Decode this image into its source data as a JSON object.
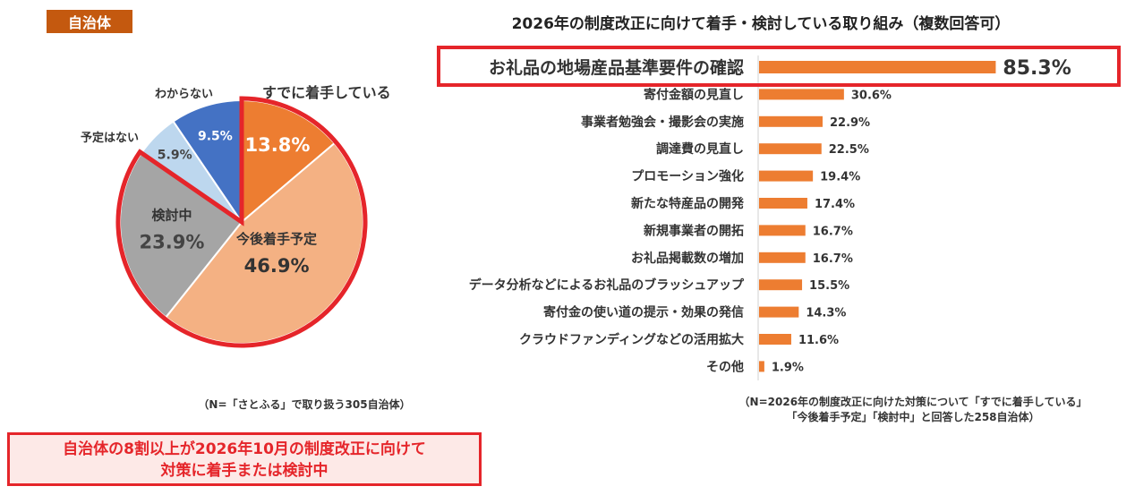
{
  "header": {
    "tag": "自治体"
  },
  "pie": {
    "note": "（N=「さとふる」で取り扱う305自治体）"
  },
  "bar": {
    "title": "2026年の制度改正に向けて着手・検討している取り組み（複数回答可）",
    "note_line1": "（N=2026年の制度改正に向けた対策について「すでに着手している」",
    "note_line2": "「今後着手予定」「検討中」と回答した258自治体）"
  },
  "summary": {
    "line1": "自治体の8割以上が2026年10月の制度改正に向けて",
    "line2": "対策に着手または検討中"
  },
  "colors": {
    "tag_bg": "#c4590f",
    "highlight_red": "#e5252a",
    "bar_orange": "#ed7d31"
  },
  "chart_data": [
    {
      "type": "pie",
      "slices": [
        {
          "label": "すでに着手している",
          "value": 13.8,
          "value_label": "13.8%",
          "color": "#ed7d31"
        },
        {
          "label": "今後着手予定",
          "value": 46.9,
          "value_label": "46.9%",
          "color": "#f4b183"
        },
        {
          "label": "検討中",
          "value": 23.9,
          "value_label": "23.9%",
          "color": "#a5a5a5"
        },
        {
          "label": "予定はない",
          "value": 5.9,
          "value_label": "5.9%",
          "color": "#bdd7ee"
        },
        {
          "label": "わからない",
          "value": 9.5,
          "value_label": "9.5%",
          "color": "#4472c4"
        }
      ]
    },
    {
      "type": "bar",
      "orientation": "horizontal",
      "categories": [
        "お礼品の地場産品基準要件の確認",
        "寄付金額の見直し",
        "事業者勉強会・撮影会の実施",
        "調達費の見直し",
        "プロモーション強化",
        "新たな特産品の開発",
        "新規事業者の開拓",
        "お礼品掲載数の増加",
        "データ分析などによるお礼品のブラッシュアップ",
        "寄付金の使い道の提示・効果の発信",
        "クラウドファンディングなどの活用拡大",
        "その他"
      ],
      "values": [
        85.3,
        30.6,
        22.9,
        22.5,
        19.4,
        17.4,
        16.7,
        16.7,
        15.5,
        14.3,
        11.6,
        1.9
      ],
      "value_labels": [
        "85.3%",
        "30.6%",
        "22.9%",
        "22.5%",
        "19.4%",
        "17.4%",
        "16.7%",
        "16.7%",
        "15.5%",
        "14.3%",
        "11.6%",
        "1.9%"
      ],
      "highlighted": "お礼品の地場産品基準要件の確認",
      "xlim": [
        0,
        100
      ],
      "grid": false
    }
  ]
}
